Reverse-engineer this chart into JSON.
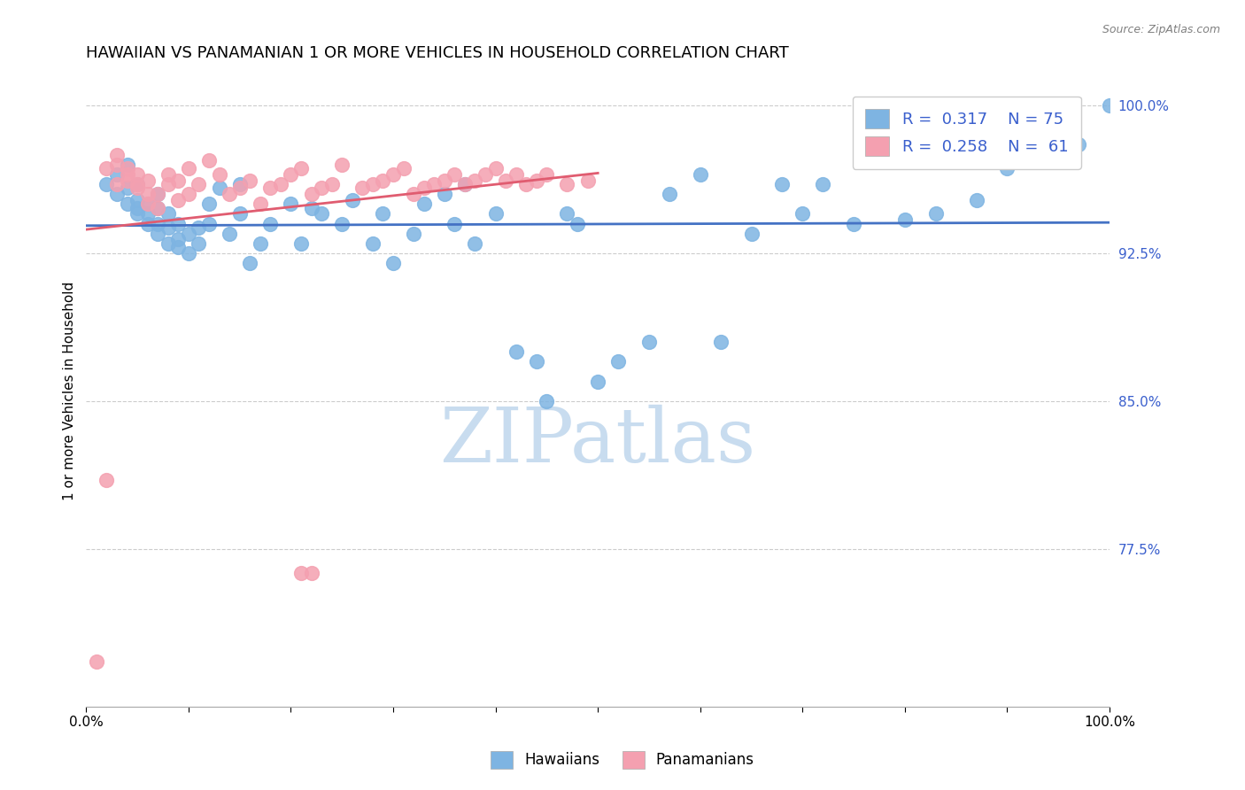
{
  "title": "HAWAIIAN VS PANAMANIAN 1 OR MORE VEHICLES IN HOUSEHOLD CORRELATION CHART",
  "source": "Source: ZipAtlas.com",
  "ylabel": "1 or more Vehicles in Household",
  "xmin": 0.0,
  "xmax": 1.0,
  "ymin": 0.695,
  "ymax": 1.015,
  "hawaiians_R": 0.317,
  "hawaiians_N": 75,
  "panamanians_R": 0.258,
  "panamanians_N": 61,
  "blue_color": "#7EB4E2",
  "pink_color": "#F4A0B0",
  "trend_blue": "#4472C4",
  "trend_pink": "#E05C70",
  "legend_text_color": "#3A5FCD",
  "watermark": "ZIPatlas",
  "watermark_color": "#C8DCEF",
  "title_fontsize": 13,
  "axis_label_fontsize": 11,
  "tick_fontsize": 11,
  "hawaiians_x": [
    0.02,
    0.03,
    0.03,
    0.04,
    0.04,
    0.04,
    0.05,
    0.05,
    0.05,
    0.05,
    0.06,
    0.06,
    0.06,
    0.07,
    0.07,
    0.07,
    0.07,
    0.08,
    0.08,
    0.08,
    0.09,
    0.09,
    0.09,
    0.1,
    0.1,
    0.11,
    0.11,
    0.12,
    0.12,
    0.13,
    0.14,
    0.15,
    0.15,
    0.16,
    0.17,
    0.18,
    0.2,
    0.21,
    0.22,
    0.23,
    0.25,
    0.26,
    0.28,
    0.29,
    0.3,
    0.32,
    0.33,
    0.35,
    0.36,
    0.37,
    0.38,
    0.4,
    0.42,
    0.44,
    0.45,
    0.47,
    0.48,
    0.5,
    0.52,
    0.55,
    0.57,
    0.6,
    0.62,
    0.65,
    0.68,
    0.7,
    0.72,
    0.75,
    0.8,
    0.83,
    0.87,
    0.9,
    0.93,
    0.97,
    1.0
  ],
  "hawaiians_y": [
    0.96,
    0.955,
    0.965,
    0.95,
    0.958,
    0.97,
    0.948,
    0.952,
    0.945,
    0.96,
    0.94,
    0.945,
    0.95,
    0.935,
    0.94,
    0.948,
    0.955,
    0.93,
    0.938,
    0.945,
    0.928,
    0.932,
    0.94,
    0.925,
    0.935,
    0.93,
    0.938,
    0.95,
    0.94,
    0.958,
    0.935,
    0.96,
    0.945,
    0.92,
    0.93,
    0.94,
    0.95,
    0.93,
    0.948,
    0.945,
    0.94,
    0.952,
    0.93,
    0.945,
    0.92,
    0.935,
    0.95,
    0.955,
    0.94,
    0.96,
    0.93,
    0.945,
    0.875,
    0.87,
    0.85,
    0.945,
    0.94,
    0.86,
    0.87,
    0.88,
    0.955,
    0.965,
    0.88,
    0.935,
    0.96,
    0.945,
    0.96,
    0.94,
    0.942,
    0.945,
    0.952,
    0.968,
    0.975,
    0.98,
    1.0
  ],
  "panamanians_x": [
    0.01,
    0.02,
    0.02,
    0.03,
    0.03,
    0.03,
    0.04,
    0.04,
    0.04,
    0.05,
    0.05,
    0.05,
    0.06,
    0.06,
    0.06,
    0.07,
    0.07,
    0.08,
    0.08,
    0.09,
    0.09,
    0.1,
    0.1,
    0.11,
    0.12,
    0.13,
    0.14,
    0.15,
    0.16,
    0.17,
    0.18,
    0.19,
    0.2,
    0.21,
    0.22,
    0.23,
    0.24,
    0.25,
    0.27,
    0.28,
    0.29,
    0.3,
    0.31,
    0.32,
    0.33,
    0.34,
    0.35,
    0.36,
    0.37,
    0.38,
    0.39,
    0.4,
    0.41,
    0.42,
    0.43,
    0.44,
    0.45,
    0.47,
    0.49,
    0.21,
    0.22
  ],
  "panamanians_y": [
    0.718,
    0.81,
    0.968,
    0.96,
    0.97,
    0.975,
    0.962,
    0.965,
    0.968,
    0.958,
    0.96,
    0.965,
    0.95,
    0.955,
    0.962,
    0.948,
    0.955,
    0.96,
    0.965,
    0.952,
    0.962,
    0.955,
    0.968,
    0.96,
    0.972,
    0.965,
    0.955,
    0.958,
    0.962,
    0.95,
    0.958,
    0.96,
    0.965,
    0.968,
    0.955,
    0.958,
    0.96,
    0.97,
    0.958,
    0.96,
    0.962,
    0.965,
    0.968,
    0.955,
    0.958,
    0.96,
    0.962,
    0.965,
    0.96,
    0.962,
    0.965,
    0.968,
    0.962,
    0.965,
    0.96,
    0.962,
    0.965,
    0.96,
    0.962,
    0.763,
    0.763
  ]
}
